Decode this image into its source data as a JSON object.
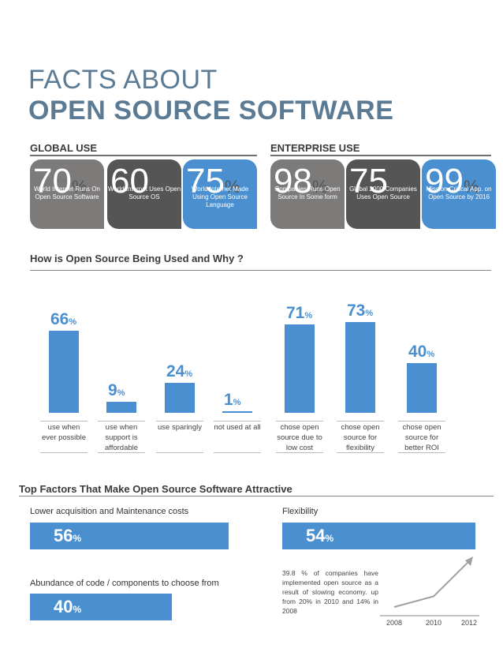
{
  "header": {
    "line1": "FACTS ABOUT",
    "line2": "OPEN SOURCE SOFTWARE"
  },
  "global": {
    "heading": "GLOBAL USE",
    "stats": [
      {
        "value": "70",
        "unit": "%",
        "desc": "World Internet Runs On Open Source Software",
        "color": "#7d7a7a"
      },
      {
        "value": "60",
        "unit": "%",
        "desc": "World Internet Uses Open Source OS",
        "color": "#555555"
      },
      {
        "value": "75",
        "unit": "%",
        "desc": "World Internet Made Using Open Source Language",
        "color": "#4a90d0"
      }
    ]
  },
  "enterprise": {
    "heading": "ENTERPRISE USE",
    "stats": [
      {
        "value": "98",
        "unit": "%",
        "desc": "Companies Runs Open Source In Some form",
        "color": "#7d7a7a"
      },
      {
        "value": "75",
        "unit": "%",
        "desc": "Global 2000 Companies Uses Open Source",
        "color": "#555555"
      },
      {
        "value": "99",
        "unit": "%",
        "desc": "Mission Critical App. on Open Source by 2016",
        "color": "#4a90d0"
      }
    ]
  },
  "usage": {
    "heading": "How is Open Source Being Used and Why ?",
    "unit": "%"
  },
  "chart_data": [
    {
      "type": "bar",
      "categories": [
        "use when ever possible",
        "use when support is affordable",
        "use sparingly",
        "not used at all",
        "chose open source due to low cost",
        "chose open source for flexibility",
        "chose open source for better ROI"
      ],
      "values": [
        66,
        9,
        24,
        1,
        71,
        73,
        40
      ],
      "color": "#4a90d0"
    },
    {
      "type": "line",
      "x": [
        "2008",
        "2010",
        "2012"
      ],
      "values": [
        14,
        20,
        39.8
      ],
      "color": "#a0a0a0"
    }
  ],
  "factors": {
    "heading": "Top Factors That Make Open Source Software Attractive",
    "items": [
      {
        "label": "Lower acquisition and Maintenance costs",
        "value": "56",
        "unit": "%"
      },
      {
        "label": "Flexibility",
        "value": "54",
        "unit": "%"
      },
      {
        "label": "Abundance of code / components to choose from",
        "value": "40",
        "unit": "%"
      }
    ],
    "note": "39.8 % of companies have implemented open source as a result of slowing economy. up from 20% in 2010 and 14% in 2008"
  }
}
